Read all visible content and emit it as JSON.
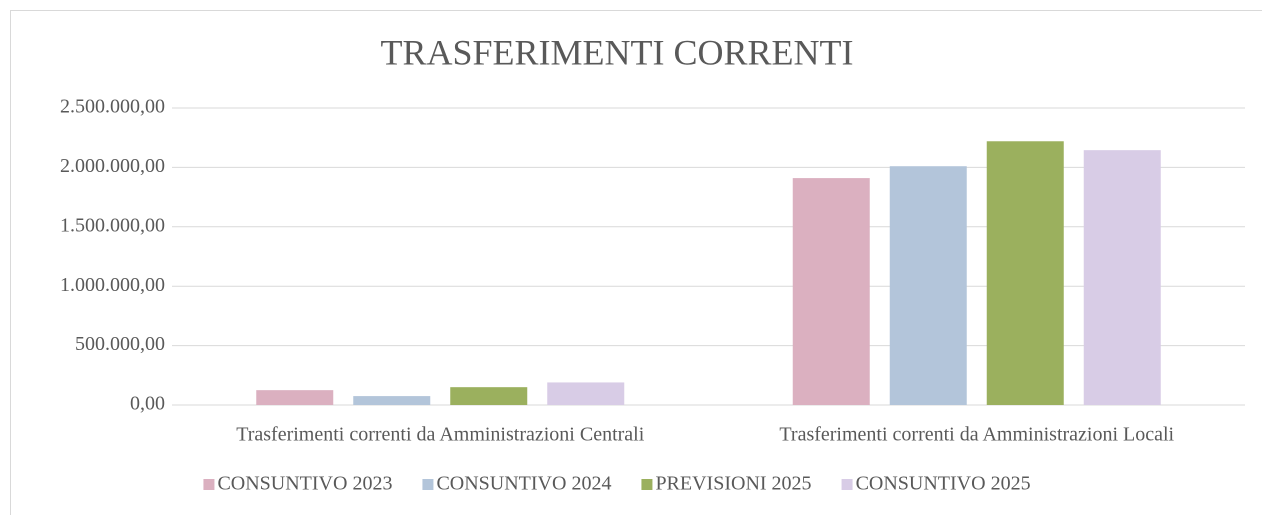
{
  "chart_data": {
    "type": "bar",
    "title": "TRASFERIMENTI CORRENTI",
    "categories": [
      "Trasferimenti correnti da Amministrazioni Centrali",
      "Trasferimenti correnti da Amministrazioni Locali"
    ],
    "series": [
      {
        "name": "CONSUNTIVO 2023",
        "color": "#dbb0c0",
        "values": [
          125000,
          1910000
        ]
      },
      {
        "name": "CONSUNTIVO 2024",
        "color": "#b3c5da",
        "values": [
          75000,
          2010000
        ]
      },
      {
        "name": "PREVISIONI 2025",
        "color": "#9bb05e",
        "values": [
          150000,
          2220000
        ]
      },
      {
        "name": "CONSUNTIVO 2025",
        "color": "#d8cce6",
        "values": [
          190000,
          2145000
        ]
      }
    ],
    "ylim": [
      0,
      2500000
    ],
    "yticks": [
      {
        "value": 0,
        "label": "0,00"
      },
      {
        "value": 500000,
        "label": "500.000,00"
      },
      {
        "value": 1000000,
        "label": "1.000.000,00"
      },
      {
        "value": 1500000,
        "label": "1.500.000,00"
      },
      {
        "value": 2000000,
        "label": "2.000.000,00"
      },
      {
        "value": 2500000,
        "label": "2.500.000,00"
      }
    ],
    "grid": true,
    "legend": "bottom"
  }
}
